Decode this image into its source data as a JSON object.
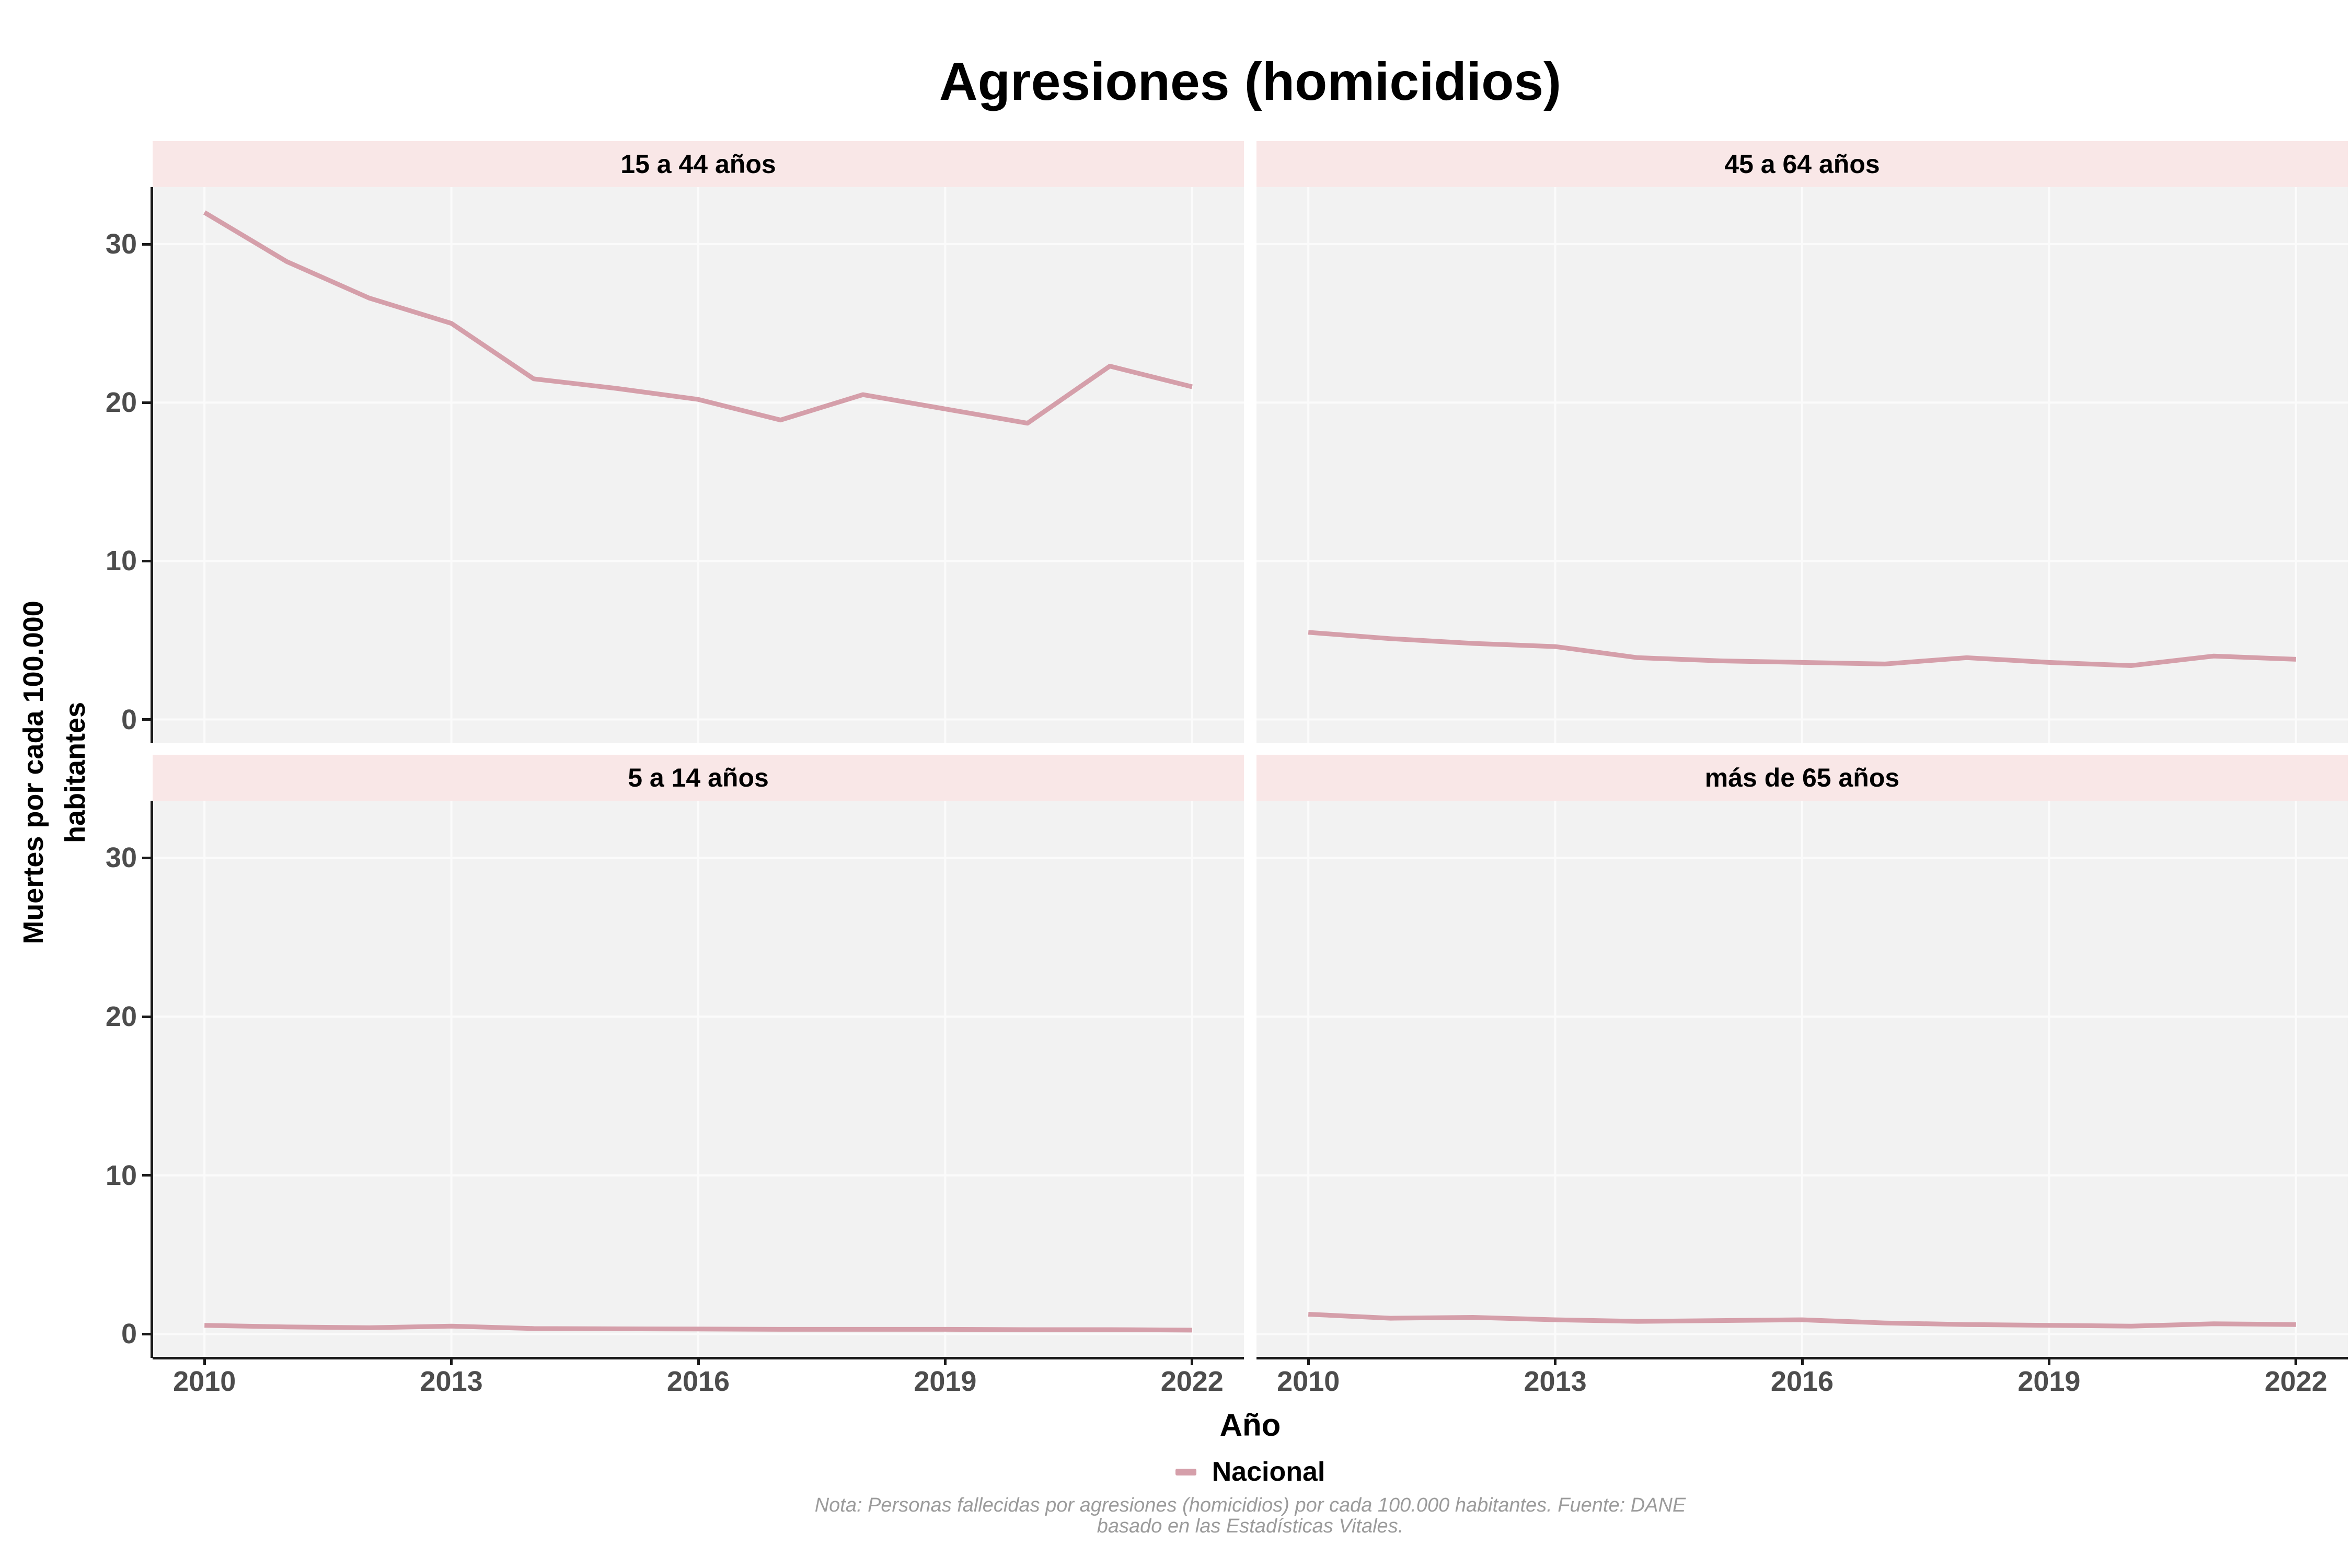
{
  "title": "Agresiones (homicidios)",
  "note": {
    "line1": "Nota: Personas fallecidas por agresiones (homicidios) por cada 100.000 habitantes. Fuente: DANE",
    "line2": "basado en las Estadísticas Vitales."
  },
  "colors": {
    "line": "#D59FAA",
    "strip_bg": "#F9E7E7",
    "panel_bg": "#F2F2F2",
    "grid": "#FBFBFB",
    "axis_text": "#4D4D4D",
    "axis_line": "#1A1A1A",
    "title_text": "#000000",
    "note_text": "#9B9B9B"
  },
  "chart_data": {
    "type": "line",
    "title": "Agresiones (homicidios)",
    "xlabel": "Año",
    "ylabel": "Muertes por cada 100.000 habitantes",
    "ylabel_lines": [
      "Muertes por cada 100.000",
      "habitantes"
    ],
    "x": [
      2010,
      2011,
      2012,
      2013,
      2014,
      2015,
      2016,
      2017,
      2018,
      2019,
      2020,
      2021,
      2022
    ],
    "x_ticks": [
      "2010",
      "2013",
      "2016",
      "2019",
      "2022"
    ],
    "x_tick_values": [
      2010,
      2013,
      2016,
      2019,
      2022
    ],
    "y_ticks": [
      "0",
      "10",
      "20",
      "30"
    ],
    "y_tick_values": [
      0,
      10,
      20,
      30
    ],
    "x_range": [
      2009.37,
      2022.63
    ],
    "y_range": [
      -1.5,
      33.6
    ],
    "grid": "major-only",
    "legend": {
      "position": "bottom",
      "entries": [
        {
          "name": "Nacional",
          "color": "#D59FAA"
        }
      ]
    },
    "facets": [
      {
        "label": "15 a 44 años",
        "series": "Nacional",
        "values": [
          32.0,
          28.9,
          26.6,
          25.0,
          21.5,
          20.9,
          20.2,
          18.9,
          20.5,
          19.6,
          18.7,
          22.3,
          21.0
        ]
      },
      {
        "label": "45 a 64 años",
        "series": "Nacional",
        "values": [
          5.5,
          5.1,
          4.8,
          4.6,
          3.9,
          3.7,
          3.6,
          3.5,
          3.9,
          3.6,
          3.4,
          4.0,
          3.8
        ]
      },
      {
        "label": "5 a 14 años",
        "series": "Nacional",
        "values": [
          0.55,
          0.45,
          0.4,
          0.5,
          0.35,
          0.33,
          0.32,
          0.3,
          0.3,
          0.3,
          0.28,
          0.28,
          0.25
        ]
      },
      {
        "label": "más de 65 años",
        "series": "Nacional",
        "values": [
          1.25,
          1.0,
          1.05,
          0.9,
          0.8,
          0.85,
          0.9,
          0.7,
          0.6,
          0.55,
          0.5,
          0.65,
          0.6
        ]
      }
    ]
  }
}
